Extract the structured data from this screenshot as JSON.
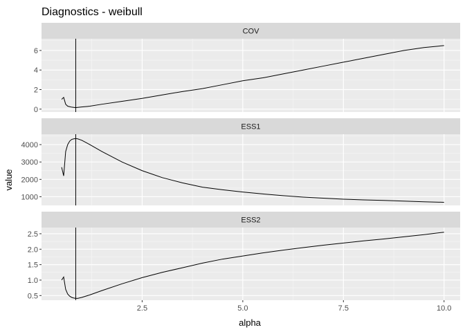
{
  "chart_data": {
    "type": "line",
    "title": "Diagnostics - weibull",
    "xlabel": "alpha",
    "ylabel": "value",
    "x_ticks": [
      "2.5",
      "5.0",
      "7.5",
      "10.0"
    ],
    "x_tick_values": [
      2.5,
      5.0,
      7.5,
      10.0
    ],
    "xlim": [
      0.0,
      10.4
    ],
    "vline_x": 0.85,
    "grid": true,
    "facet_scales": "free_y",
    "colors": {
      "panel_bg": "#EBEBEB",
      "strip_bg": "#D9D9D9",
      "grid_major": "#FFFFFF",
      "grid_minor": "#F5F5F5",
      "line": "#000000",
      "tick_label": "#4D4D4D"
    },
    "panels": [
      {
        "label": "COV",
        "y_ticks": [
          "0",
          "2",
          "4",
          "6"
        ],
        "y_tick_values": [
          0,
          2,
          4,
          6
        ],
        "ylim": [
          -0.3,
          7.2
        ],
        "x": [
          0.5,
          0.55,
          0.6,
          0.65,
          0.7,
          0.75,
          0.8,
          0.85,
          0.9,
          1.0,
          1.2,
          1.5,
          2.0,
          2.5,
          3.0,
          3.5,
          4.0,
          4.5,
          5.0,
          5.5,
          6.0,
          6.5,
          7.0,
          7.5,
          8.0,
          8.5,
          9.0,
          9.5,
          10.0
        ],
        "values": [
          1.0,
          1.2,
          0.5,
          0.3,
          0.25,
          0.2,
          0.18,
          0.15,
          0.18,
          0.22,
          0.3,
          0.5,
          0.8,
          1.1,
          1.45,
          1.8,
          2.1,
          2.5,
          2.9,
          3.2,
          3.6,
          4.0,
          4.4,
          4.8,
          5.2,
          5.6,
          6.0,
          6.3,
          6.5
        ]
      },
      {
        "label": "ESS1",
        "y_ticks": [
          "1000",
          "2000",
          "3000",
          "4000"
        ],
        "y_tick_values": [
          1000,
          2000,
          3000,
          4000
        ],
        "ylim": [
          500,
          4600
        ],
        "x": [
          0.5,
          0.55,
          0.6,
          0.65,
          0.7,
          0.75,
          0.8,
          0.85,
          0.9,
          1.0,
          1.2,
          1.5,
          2.0,
          2.5,
          3.0,
          3.5,
          4.0,
          4.5,
          5.0,
          5.5,
          6.0,
          6.5,
          7.0,
          7.5,
          8.0,
          8.5,
          9.0,
          9.5,
          10.0
        ],
        "values": [
          2700,
          2200,
          3600,
          4000,
          4200,
          4300,
          4330,
          4350,
          4330,
          4250,
          4000,
          3600,
          3000,
          2500,
          2100,
          1800,
          1550,
          1400,
          1270,
          1160,
          1060,
          980,
          920,
          860,
          820,
          790,
          750,
          710,
          680
        ]
      },
      {
        "label": "ESS2",
        "y_ticks": [
          "0.5",
          "1.0",
          "1.5",
          "2.0",
          "2.5"
        ],
        "y_tick_values": [
          0.5,
          1.0,
          1.5,
          2.0,
          2.5
        ],
        "ylim": [
          0.35,
          2.7
        ],
        "x": [
          0.5,
          0.55,
          0.6,
          0.65,
          0.7,
          0.75,
          0.8,
          0.85,
          0.9,
          1.0,
          1.2,
          1.5,
          2.0,
          2.5,
          3.0,
          3.5,
          4.0,
          4.5,
          5.0,
          5.5,
          6.0,
          6.5,
          7.0,
          7.5,
          8.0,
          8.5,
          9.0,
          9.5,
          10.0
        ],
        "values": [
          1.0,
          1.1,
          0.7,
          0.55,
          0.48,
          0.44,
          0.42,
          0.41,
          0.41,
          0.44,
          0.52,
          0.66,
          0.88,
          1.08,
          1.25,
          1.4,
          1.55,
          1.68,
          1.78,
          1.88,
          1.97,
          2.05,
          2.13,
          2.2,
          2.27,
          2.33,
          2.4,
          2.47,
          2.55
        ]
      }
    ]
  }
}
